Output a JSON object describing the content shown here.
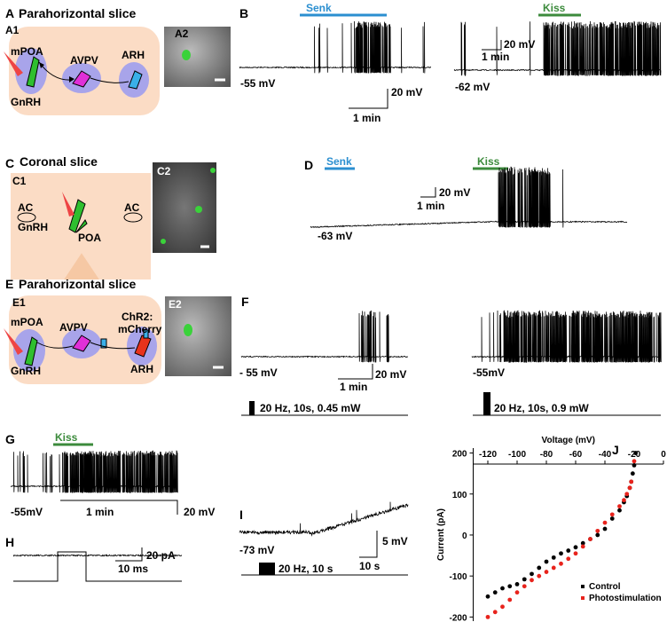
{
  "panels": {
    "A": {
      "label": "A",
      "title": "Parahorizontal slice",
      "sub1": "A1",
      "sub2": "A2",
      "region1": "mPOA",
      "region2": "AVPV",
      "region3": "ARH",
      "cell": "GnRH"
    },
    "B": {
      "label": "B",
      "drug1": "Senk",
      "drug2": "Kiss",
      "rmp1": "-55 mV",
      "rmp2": "-62 mV",
      "scale1_v": "20 mV",
      "scale1_t": "1 min",
      "scale2_v": "20 mV",
      "scale2_t": "1 min"
    },
    "C": {
      "label": "C",
      "title": "Coronal slice",
      "sub1": "C1",
      "sub2": "C2",
      "ac_left": "AC",
      "ac_right": "AC",
      "cell": "GnRH",
      "region": "POA"
    },
    "D": {
      "label": "D",
      "drug1": "Senk",
      "drug2": "Kiss",
      "scale_v": "20 mV",
      "scale_t": "1 min",
      "rmp": "-63 mV"
    },
    "E": {
      "label": "E",
      "title": "Parahorizontal slice",
      "sub1": "E1",
      "sub2": "E2",
      "region1": "mPOA",
      "region2": "AVPV",
      "opsin1": "ChR2:",
      "opsin2": "mCherry",
      "region3": "ARH",
      "cell": "GnRH"
    },
    "F": {
      "label": "F",
      "rmp1": "- 55 mV",
      "scale_t": "1 min",
      "scale_v": "20 mV",
      "stim1": "20 Hz, 10s, 0.45 mW",
      "rmp2": "-55mV",
      "stim2": "20 Hz, 10s, 0.9 mW"
    },
    "G": {
      "label": "G",
      "drug": "Kiss",
      "rmp": "-55mV",
      "scale_t": "1 min",
      "scale_v": "20 mV"
    },
    "H": {
      "label": "H",
      "scale_i": "20 pA",
      "scale_t": "10 ms"
    },
    "I": {
      "label": "I",
      "rmp": "-73 mV",
      "scale_v": "5 mV",
      "scale_t": "10 s",
      "stim": "20 Hz, 10 s"
    },
    "J": {
      "label": "J"
    }
  },
  "chart_data": {
    "type": "scatter",
    "x_label": "Voltage (mV)",
    "y_label": "Current (pA)",
    "xlim": [
      -130,
      0
    ],
    "ylim": [
      -210,
      212
    ],
    "xticks": [
      -120,
      -100,
      -80,
      -60,
      -40,
      -20,
      0
    ],
    "yticks": [
      -200,
      -100,
      0,
      100,
      200
    ],
    "legend": "lower-right",
    "series": [
      {
        "name": "Control",
        "color": "#000000",
        "x": [
          -120,
          -115,
          -110,
          -105,
          -100,
          -95,
          -90,
          -85,
          -80,
          -75,
          -70,
          -65,
          -60,
          -55,
          -50,
          -45,
          -40,
          -35,
          -30,
          -27,
          -25,
          -23,
          -22,
          -21,
          -20,
          -19
        ],
        "values": [
          -150,
          -140,
          -130,
          -125,
          -120,
          -108,
          -95,
          -80,
          -65,
          -55,
          -45,
          -38,
          -30,
          -20,
          -10,
          0,
          15,
          40,
          60,
          80,
          95,
          115,
          130,
          150,
          170,
          200
        ]
      },
      {
        "name": "Photostimulation",
        "color": "#e8231c",
        "x": [
          -120,
          -115,
          -110,
          -105,
          -100,
          -95,
          -90,
          -85,
          -80,
          -75,
          -70,
          -65,
          -60,
          -55,
          -50,
          -45,
          -40,
          -35,
          -30,
          -27,
          -25,
          -23,
          -22,
          -20
        ],
        "values": [
          -200,
          -188,
          -175,
          -158,
          -140,
          -125,
          -110,
          -100,
          -90,
          -80,
          -70,
          -58,
          -45,
          -28,
          -10,
          10,
          30,
          50,
          70,
          85,
          100,
          115,
          130,
          180
        ]
      }
    ]
  }
}
